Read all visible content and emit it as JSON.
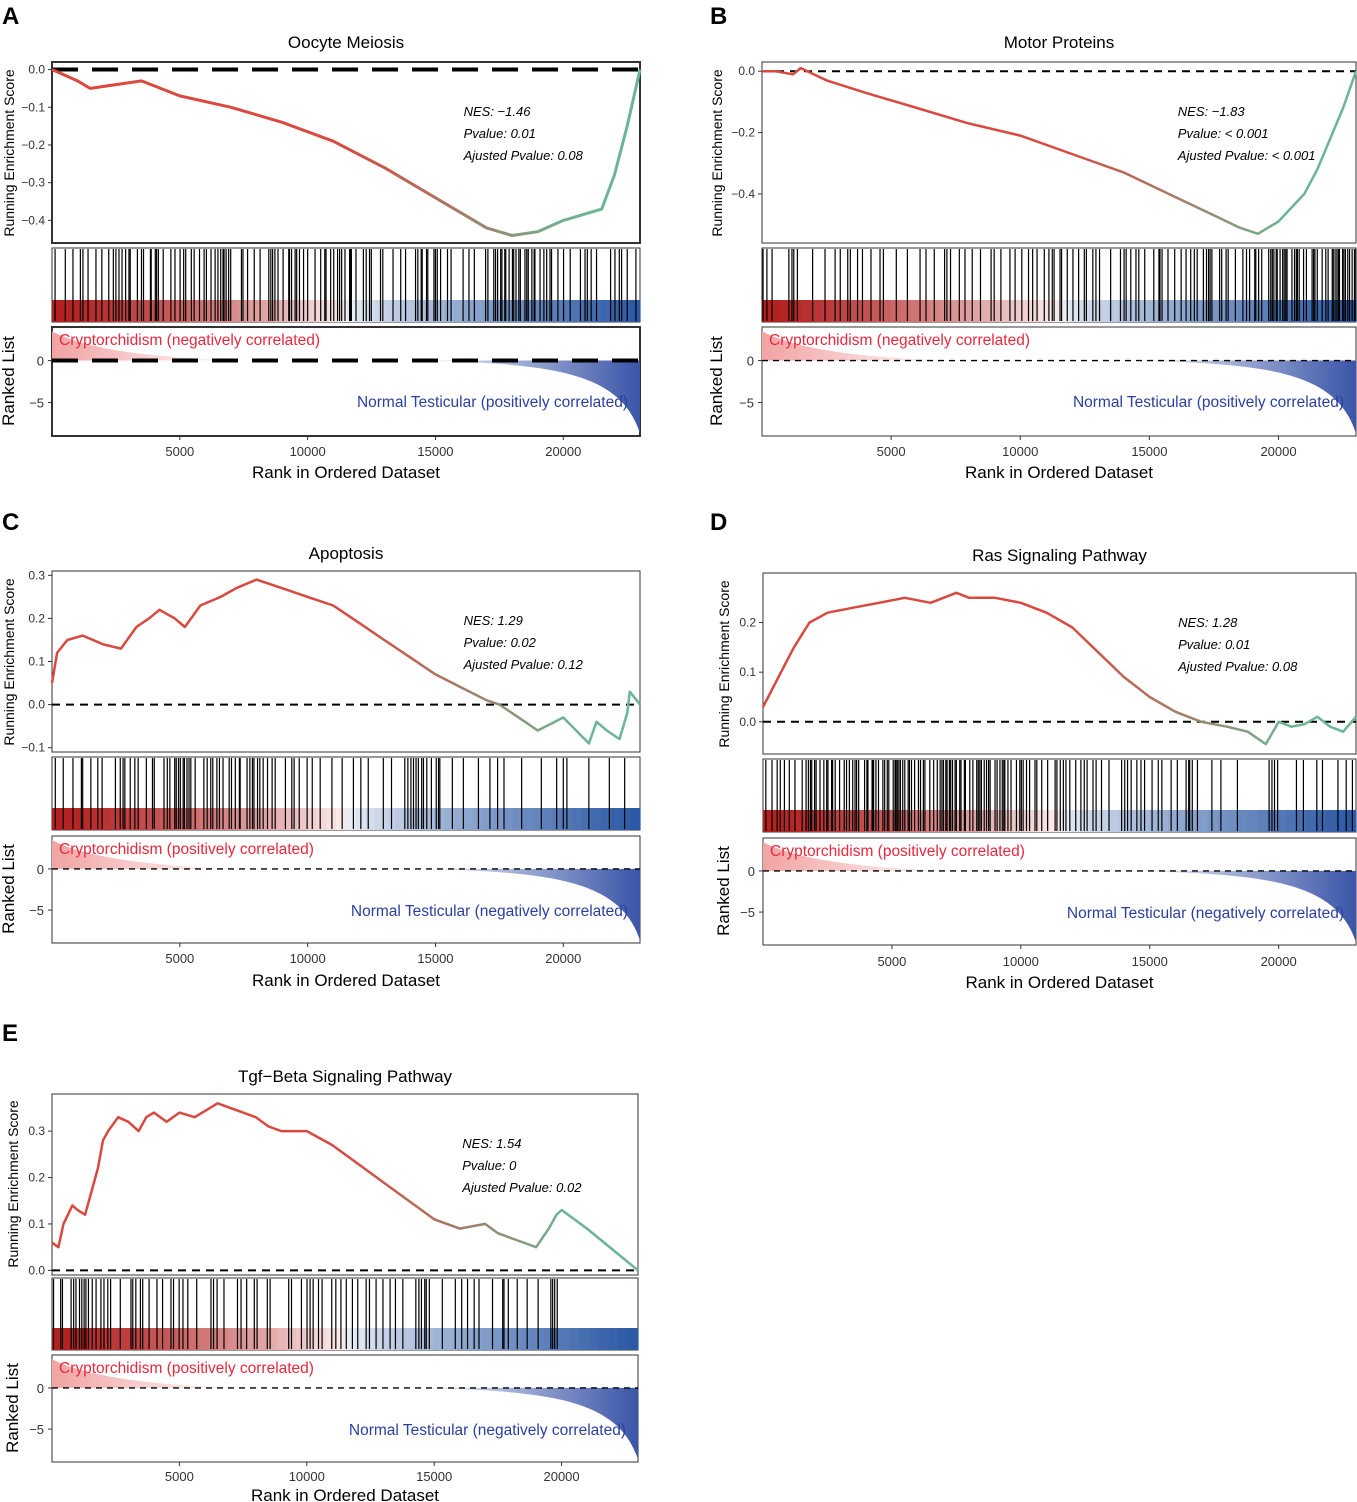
{
  "figure": {
    "x_axis_label": "Rank in Ordered Dataset",
    "y_label_top": "Running Enrichment Score",
    "y_label_bottom": "Ranked List",
    "colors": {
      "curve_start": "#d9493f",
      "curve_end": "#6bb592",
      "red_label": "#e8283c",
      "blue_label": "#2b3f9e",
      "heat_red": "#b2201f",
      "heat_blue": "#2c5aa5"
    }
  },
  "chart_data": [
    {
      "type": "line",
      "panel_letter": "A",
      "title": "Oocyte Meiosis",
      "stats": {
        "nes": "NES: −1.46",
        "pvalue": "Pvalue: 0.01",
        "adj_pvalue": "Ajusted Pvalue: 0.08"
      },
      "xlim": [
        0,
        23000
      ],
      "x_ticks": [
        5000,
        10000,
        15000,
        20000
      ],
      "x_tick_labels": [
        "5000",
        "10000",
        "15000",
        "20000"
      ],
      "ylim": [
        -0.46,
        0.02
      ],
      "y_ticks": [
        0.0,
        -0.1,
        -0.2,
        -0.3,
        -0.4
      ],
      "y_tick_labels": [
        "0.0",
        "−0.1",
        "−0.2",
        "−0.3",
        "−0.4"
      ],
      "ranked_ylim": [
        -9,
        4
      ],
      "ranked_y_ticks": [
        0,
        -5
      ],
      "ranked_y_tick_labels": [
        "0",
        "−5"
      ],
      "curve": {
        "x": [
          0,
          1000,
          1500,
          2500,
          3500,
          5000,
          7000,
          9000,
          11000,
          13000,
          15000,
          17000,
          18000,
          19000,
          20000,
          21500,
          22000,
          22500,
          23000
        ],
        "y": [
          0.0,
          -0.03,
          -0.05,
          -0.04,
          -0.03,
          -0.07,
          -0.1,
          -0.14,
          -0.19,
          -0.26,
          -0.34,
          -0.42,
          -0.44,
          -0.43,
          -0.4,
          -0.37,
          -0.28,
          -0.15,
          0.0
        ]
      },
      "hits": [
        120,
        520,
        820,
        1110,
        1210,
        1410,
        1720,
        1950,
        2220,
        2400,
        2500,
        2620,
        2740,
        2880,
        3010,
        3060,
        3340,
        3500,
        3580,
        3850,
        3880,
        4040,
        4090,
        4160,
        4350,
        4650,
        4810,
        5010,
        5150,
        5230,
        5450,
        5560,
        5770,
        5950,
        6040,
        6220,
        6380,
        6490,
        6600,
        6690,
        6730,
        6810,
        6910,
        6990,
        7410,
        7470,
        7650,
        7910,
        8140,
        8480,
        8560,
        8630,
        8720,
        8840,
        9040,
        9260,
        9290,
        9370,
        9510,
        9570,
        9680,
        9840,
        10000,
        10290,
        10510,
        10670,
        10720,
        10900,
        11020,
        11170,
        11250,
        11330,
        11460,
        11640,
        11680,
        11710,
        11890,
        12180,
        12290,
        12420,
        12490,
        12850,
        12940,
        13340,
        13640,
        13830,
        14220,
        14310,
        14440,
        14480,
        14650,
        14700,
        14940,
        15000,
        15070,
        15200,
        15470,
        15610,
        16080,
        16310,
        16520,
        16960,
        17050,
        17280,
        17350,
        17430,
        17550,
        17600,
        17710,
        17750,
        17880,
        18010,
        18060,
        18150,
        18260,
        18320,
        18500,
        18570,
        18630,
        18770,
        18860,
        18890,
        19090,
        19240,
        19350,
        19480,
        19540,
        19790,
        20010,
        20270,
        20670,
        20850,
        20940,
        21090,
        21300,
        21850,
        22020,
        22190,
        22280,
        22500,
        22840
      ],
      "labels": {
        "top": "Cryptorchidism (negatively correlated)",
        "bottom": "Normal Testicular (positively correlated)"
      },
      "heavy_zero_line": true
    },
    {
      "type": "line",
      "panel_letter": "B",
      "title": "Motor Proteins",
      "stats": {
        "nes": "NES: −1.83",
        "pvalue": "Pvalue: < 0.001",
        "adj_pvalue": "Ajusted Pvalue: < 0.001"
      },
      "xlim": [
        0,
        23000
      ],
      "x_ticks": [
        5000,
        10000,
        15000,
        20000
      ],
      "x_tick_labels": [
        "5000",
        "10000",
        "15000",
        "20000"
      ],
      "ylim": [
        -0.56,
        0.03
      ],
      "y_ticks": [
        0.0,
        -0.2,
        -0.4
      ],
      "y_tick_labels": [
        "0.0",
        "−0.2",
        "−0.4"
      ],
      "ranked_ylim": [
        -9,
        4
      ],
      "ranked_y_ticks": [
        0,
        -5
      ],
      "ranked_y_tick_labels": [
        "0",
        "−5"
      ],
      "curve": {
        "x": [
          0,
          500,
          1200,
          1500,
          2500,
          4000,
          6000,
          8000,
          10000,
          12000,
          14000,
          16000,
          17500,
          18500,
          19200,
          20000,
          21000,
          21500,
          22000,
          22500,
          23000
        ],
        "y": [
          0.0,
          0.0,
          -0.01,
          0.01,
          -0.03,
          -0.07,
          -0.12,
          -0.17,
          -0.21,
          -0.27,
          -0.33,
          -0.41,
          -0.47,
          -0.51,
          -0.53,
          -0.49,
          -0.4,
          -0.32,
          -0.22,
          -0.12,
          0.0
        ]
      },
      "hits": [
        40,
        190,
        390,
        1040,
        1160,
        1230,
        1370,
        1960,
        2440,
        2830,
        3030,
        3320,
        3420,
        3700,
        3890,
        4220,
        4570,
        4700,
        5200,
        5630,
        6120,
        6350,
        6670,
        7070,
        7160,
        7300,
        7640,
        7860,
        8140,
        8460,
        8870,
        8990,
        9250,
        9600,
        9800,
        10060,
        10320,
        10480,
        10650,
        10930,
        11110,
        11240,
        11310,
        11540,
        11600,
        11820,
        12040,
        12260,
        12480,
        12560,
        12810,
        12930,
        13070,
        13500,
        13880,
        14020,
        14100,
        14280,
        14480,
        14590,
        14820,
        15170,
        15370,
        15410,
        15490,
        15720,
        15980,
        16230,
        16420,
        16600,
        16740,
        16850,
        17090,
        17210,
        17290,
        17350,
        17420,
        17720,
        17800,
        17970,
        18050,
        18330,
        18620,
        18760,
        18880,
        19080,
        19120,
        19230,
        19350,
        19620,
        19700,
        19760,
        19820,
        19910,
        19950,
        20060,
        20160,
        20220,
        20280,
        20330,
        20520,
        20620,
        20690,
        20730,
        20800,
        20970,
        21080,
        21300,
        21360,
        21410,
        21500,
        21690,
        21830,
        21920,
        22080,
        22120,
        22190,
        22260,
        22320,
        22360,
        22480,
        22530,
        22590,
        22680,
        22750,
        22850,
        22940,
        22990
      ],
      "labels": {
        "top": "Cryptorchidism (negatively correlated)",
        "bottom": "Normal Testicular (positively correlated)"
      },
      "heavy_zero_line": false
    },
    {
      "type": "line",
      "panel_letter": "C",
      "title": "Apoptosis",
      "stats": {
        "nes": "NES: 1.29",
        "pvalue": "Pvalue: 0.02",
        "adj_pvalue": "Ajusted Pvalue: 0.12"
      },
      "xlim": [
        0,
        23000
      ],
      "x_ticks": [
        5000,
        10000,
        15000,
        20000
      ],
      "x_tick_labels": [
        "5000",
        "10000",
        "15000",
        "20000"
      ],
      "ylim": [
        -0.11,
        0.31
      ],
      "y_ticks": [
        0.3,
        0.2,
        0.1,
        0.0,
        -0.1
      ],
      "y_tick_labels": [
        "0.3",
        "0.2",
        "0.1",
        "0.0",
        "−0.1"
      ],
      "ranked_ylim": [
        -9,
        4
      ],
      "ranked_y_ticks": [
        0,
        -5
      ],
      "ranked_y_tick_labels": [
        "0",
        "−5"
      ],
      "curve": {
        "x": [
          0,
          200,
          600,
          1200,
          2000,
          2700,
          3300,
          3800,
          4200,
          4800,
          5200,
          5800,
          6600,
          7200,
          8000,
          9000,
          10000,
          11000,
          12000,
          13000,
          14000,
          15000,
          16000,
          17000,
          17500,
          18000,
          18500,
          19000,
          20000,
          21000,
          21300,
          21700,
          22200,
          22500,
          22600,
          23000
        ],
        "y": [
          0.05,
          0.12,
          0.15,
          0.16,
          0.14,
          0.13,
          0.18,
          0.2,
          0.22,
          0.2,
          0.18,
          0.23,
          0.25,
          0.27,
          0.29,
          0.27,
          0.25,
          0.23,
          0.19,
          0.15,
          0.11,
          0.07,
          0.04,
          0.01,
          0.0,
          -0.02,
          -0.04,
          -0.06,
          -0.03,
          -0.09,
          -0.04,
          -0.06,
          -0.08,
          -0.02,
          0.03,
          0.0
        ]
      },
      "hits": [
        130,
        440,
        820,
        1150,
        1200,
        1520,
        1790,
        1960,
        2480,
        2670,
        2780,
        2850,
        3060,
        3240,
        3370,
        3690,
        3930,
        4000,
        4380,
        4510,
        4610,
        4800,
        4860,
        4950,
        5020,
        5130,
        5180,
        5280,
        5360,
        5430,
        5600,
        5940,
        6070,
        6210,
        6290,
        6450,
        6550,
        6690,
        6930,
        7020,
        7170,
        7330,
        7360,
        7630,
        7740,
        7840,
        7900,
        8040,
        8130,
        8260,
        8430,
        8610,
        8730,
        9130,
        9380,
        9470,
        9670,
        9980,
        10180,
        10490,
        10950,
        11350,
        11790,
        12080,
        12370,
        12960,
        13280,
        13800,
        13920,
        14040,
        14140,
        14240,
        14330,
        14460,
        14530,
        14660,
        14840,
        15030,
        15120,
        15170,
        15660,
        16090,
        16680,
        17130,
        17430,
        17680,
        18370,
        19140,
        19740,
        20000,
        20140,
        21000,
        21800,
        22400
      ],
      "labels": {
        "top": "Cryptorchidism (positively correlated)",
        "bottom": "Normal Testicular (negatively correlated)"
      },
      "heavy_zero_line": false
    },
    {
      "type": "line",
      "panel_letter": "D",
      "title": "Ras Signaling Pathway",
      "stats": {
        "nes": "NES: 1.28",
        "pvalue": "Pvalue: 0.01",
        "adj_pvalue": "Ajusted Pvalue: 0.08"
      },
      "xlim": [
        0,
        23000
      ],
      "x_ticks": [
        5000,
        10000,
        15000,
        20000
      ],
      "x_tick_labels": [
        "5000",
        "10000",
        "15000",
        "20000"
      ],
      "ylim": [
        -0.065,
        0.3
      ],
      "y_ticks": [
        0.2,
        0.1,
        0.0
      ],
      "y_tick_labels": [
        "0.2",
        "0.1",
        "0.0"
      ],
      "ranked_ylim": [
        -9,
        4
      ],
      "ranked_y_ticks": [
        0,
        -5
      ],
      "ranked_y_tick_labels": [
        "0",
        "−5"
      ],
      "curve": {
        "x": [
          0,
          200,
          500,
          800,
          1200,
          1800,
          2500,
          3500,
          4500,
          5500,
          6500,
          7000,
          7500,
          8000,
          9000,
          10000,
          11000,
          12000,
          13000,
          14000,
          15000,
          16000,
          17000,
          18000,
          18800,
          19500,
          20000,
          20500,
          21000,
          21500,
          22000,
          22500,
          23000
        ],
        "y": [
          0.03,
          0.05,
          0.08,
          0.11,
          0.15,
          0.2,
          0.22,
          0.23,
          0.24,
          0.25,
          0.24,
          0.25,
          0.26,
          0.25,
          0.25,
          0.24,
          0.22,
          0.19,
          0.14,
          0.09,
          0.05,
          0.02,
          0.0,
          -0.01,
          -0.02,
          -0.045,
          0.0,
          -0.01,
          -0.005,
          0.01,
          -0.01,
          -0.02,
          0.01
        ]
      },
      "hits": [
        110,
        350,
        550,
        670,
        830,
        1020,
        1240,
        1520,
        1670,
        1760,
        1840,
        1890,
        2000,
        2060,
        2210,
        2360,
        2470,
        2520,
        2660,
        2700,
        2800,
        2970,
        3150,
        3240,
        3350,
        3480,
        3570,
        3630,
        3710,
        3940,
        4030,
        4070,
        4230,
        4270,
        4290,
        4380,
        4480,
        4650,
        4720,
        4820,
        4880,
        5050,
        5120,
        5160,
        5210,
        5270,
        5330,
        5420,
        5500,
        5630,
        5680,
        5760,
        5880,
        6030,
        6110,
        6220,
        6280,
        6470,
        6620,
        6760,
        6870,
        6940,
        7000,
        7090,
        7140,
        7230,
        7280,
        7350,
        7450,
        7500,
        7630,
        7680,
        7810,
        7850,
        8020,
        8140,
        8290,
        8350,
        8410,
        8470,
        8580,
        8670,
        8750,
        8810,
        9000,
        9080,
        9190,
        9280,
        9340,
        9380,
        9500,
        9620,
        9830,
        9960,
        10020,
        10090,
        10220,
        10340,
        10550,
        10620,
        10810,
        11040,
        11330,
        11400,
        11530,
        11650,
        11750,
        11900,
        12130,
        12330,
        12460,
        12570,
        12800,
        12920,
        13130,
        13420,
        13910,
        14030,
        14140,
        14280,
        14500,
        14660,
        14800,
        15090,
        15330,
        15470,
        15830,
        16070,
        16410,
        16510,
        16550,
        16650,
        16850,
        17410,
        17760,
        18400,
        19630,
        19740,
        19840,
        19960,
        20690,
        20960,
        21480,
        21700,
        22300,
        22620,
        22860
      ],
      "labels": {
        "top": "Cryptorchidism (positively correlated)",
        "bottom": "Normal Testicular (negatively correlated)"
      },
      "heavy_zero_line": false
    },
    {
      "type": "line",
      "panel_letter": "E",
      "title": "Tgf−Beta Signaling Pathway",
      "stats": {
        "nes": "NES: 1.54",
        "pvalue": "Pvalue: 0",
        "adj_pvalue": "Ajusted Pvalue: 0.02"
      },
      "xlim": [
        0,
        23000
      ],
      "x_ticks": [
        5000,
        10000,
        15000,
        20000
      ],
      "x_tick_labels": [
        "5000",
        "10000",
        "15000",
        "20000"
      ],
      "ylim": [
        -0.01,
        0.38
      ],
      "y_ticks": [
        0.3,
        0.2,
        0.1,
        0.0
      ],
      "y_tick_labels": [
        "0.3",
        "0.2",
        "0.1",
        "0.0"
      ],
      "ranked_ylim": [
        -9,
        4
      ],
      "ranked_y_ticks": [
        0,
        -5
      ],
      "ranked_y_tick_labels": [
        "0",
        "−5"
      ],
      "curve": {
        "x": [
          0,
          250,
          450,
          800,
          1000,
          1300,
          1600,
          1800,
          2000,
          2200,
          2600,
          3000,
          3400,
          3700,
          4000,
          4500,
          5000,
          5600,
          6200,
          6500,
          7000,
          7500,
          8000,
          8500,
          9000,
          10000,
          11000,
          12000,
          13000,
          14000,
          15000,
          16000,
          17000,
          17500,
          18000,
          18500,
          19000,
          19500,
          19800,
          20000,
          20500,
          21000,
          22000,
          23000
        ],
        "y": [
          0.06,
          0.05,
          0.1,
          0.14,
          0.13,
          0.12,
          0.18,
          0.22,
          0.28,
          0.3,
          0.33,
          0.32,
          0.3,
          0.33,
          0.34,
          0.32,
          0.34,
          0.33,
          0.35,
          0.36,
          0.35,
          0.34,
          0.33,
          0.31,
          0.3,
          0.3,
          0.27,
          0.23,
          0.19,
          0.15,
          0.11,
          0.09,
          0.1,
          0.08,
          0.07,
          0.06,
          0.05,
          0.09,
          0.12,
          0.13,
          0.11,
          0.09,
          0.045,
          0.0
        ]
      },
      "hits": [
        60,
        340,
        410,
        750,
        850,
        940,
        1080,
        1170,
        1260,
        1330,
        1430,
        1580,
        1730,
        1920,
        2040,
        2190,
        2300,
        2680,
        3100,
        3170,
        3290,
        3470,
        3560,
        3810,
        4120,
        4340,
        4670,
        4770,
        4990,
        5140,
        5330,
        5680,
        6240,
        6340,
        6480,
        6750,
        7280,
        7420,
        7640,
        7940,
        8050,
        8450,
        8560,
        9290,
        9400,
        9790,
        10010,
        10130,
        10250,
        10460,
        10600,
        10980,
        11140,
        11340,
        11550,
        11790,
        12000,
        12330,
        12460,
        12720,
        12990,
        13270,
        13480,
        13770,
        14280,
        14400,
        14500,
        14630,
        14690,
        14810,
        15320,
        15830,
        16080,
        16310,
        16570,
        16760,
        17290,
        17690,
        17740,
        17910,
        18260,
        18650,
        19080,
        19580,
        19650,
        19730,
        19830
      ],
      "labels": {
        "top": "Cryptorchidism (positively correlated)",
        "bottom": "Normal Testicular (negatively correlated)"
      },
      "heavy_zero_line": false
    }
  ]
}
